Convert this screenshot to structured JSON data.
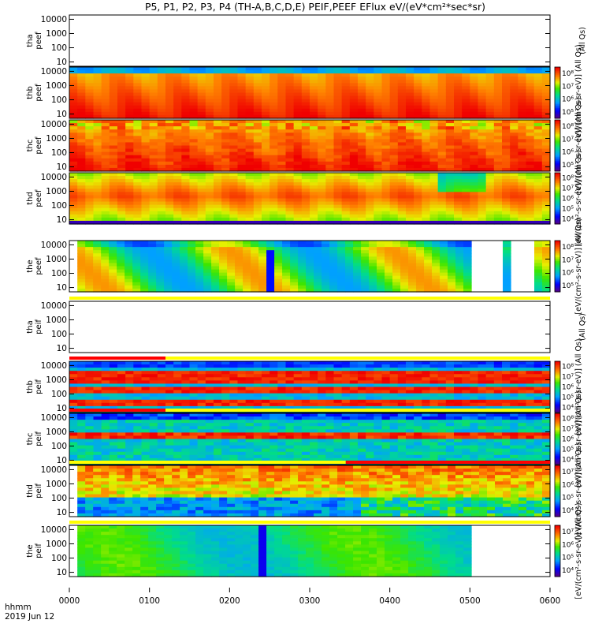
{
  "title": "P5, P1, P2, P3, P4 (TH-A,B,C,D,E) PEIF,PEEF EFlux eV/(eV*cm²*sec*sr)",
  "footer": {
    "label_hhmm": "hhmm",
    "label_date": "2019 Jun 12"
  },
  "colors": {
    "flag_yellow": "#ffff00",
    "flag_red": "#ff0000"
  },
  "chart_data": {
    "type": "heatmap",
    "x_ticks": [
      "0000",
      "0100",
      "0200",
      "0300",
      "0400",
      "0500",
      "0600"
    ],
    "y_ticks": [
      "10",
      "100",
      "1000",
      "10000"
    ],
    "y_scale": "log",
    "y_range": [
      5,
      20000
    ],
    "time_range_hours": [
      0,
      6
    ],
    "colorbar_scale": "log",
    "panels": [
      {
        "label_top": "tha",
        "label_bottom": "peef",
        "data_gap": true,
        "unit_label": "(All Qs)"
      },
      {
        "label_top": "thb",
        "label_bottom": "peef",
        "colorbar_ticks": [
          "10⁵",
          "10⁶",
          "10⁷",
          "10⁸"
        ],
        "unit_label": "[eV/(cm²-s-sr-eV)] (All Qs)"
      },
      {
        "label_top": "thc",
        "label_bottom": "peef",
        "colorbar_ticks": [
          "10⁵",
          "10⁶",
          "10⁷",
          "10⁸"
        ],
        "unit_label": "[eV/(cm²-s-sr-eV)] (All Qs)"
      },
      {
        "label_top": "thd",
        "label_bottom": "peef",
        "colorbar_ticks": [
          "10⁴",
          "10⁵",
          "10⁶",
          "10⁷",
          "10⁸"
        ],
        "unit_label": "[eV/(cm²-s-sr-eV)] (All Qs)"
      },
      {
        "label_top": "the",
        "label_bottom": "peef",
        "colorbar_ticks": [
          "10⁵",
          "10⁶",
          "10⁷",
          "10⁸"
        ],
        "unit_label": "[eV/(cm²-s-sr-eV)] (All Qs)"
      },
      {
        "label_top": "tha",
        "label_bottom": "peif",
        "data_gap": true,
        "unit_label": "(All Qs)"
      },
      {
        "label_top": "thb",
        "label_bottom": "peif",
        "colorbar_ticks": [
          "10⁴",
          "10⁵",
          "10⁶",
          "10⁷",
          "10⁸"
        ],
        "unit_label": "[eV/(cm²-s-sr-eV)] (All Qs)"
      },
      {
        "label_top": "thc",
        "label_bottom": "peif",
        "colorbar_ticks": [
          "10⁴",
          "10⁵",
          "10⁶",
          "10⁷",
          "10⁸"
        ],
        "unit_label": "[eV/(cm²-s-sr-eV)] (All Qs)"
      },
      {
        "label_top": "thd",
        "label_bottom": "peif",
        "colorbar_ticks": [
          "10⁴",
          "10⁵",
          "10⁶",
          "10⁷"
        ],
        "unit_label": "[eV/(cm²-s-sr-eV)] (All Qs)"
      },
      {
        "label_top": "the",
        "label_bottom": "peif",
        "colorbar_ticks": [
          "10⁴",
          "10⁵",
          "10⁶",
          "10⁷"
        ],
        "unit_label": "[eV/(cm²-s-sr-eV)] (All Qs)"
      }
    ]
  }
}
